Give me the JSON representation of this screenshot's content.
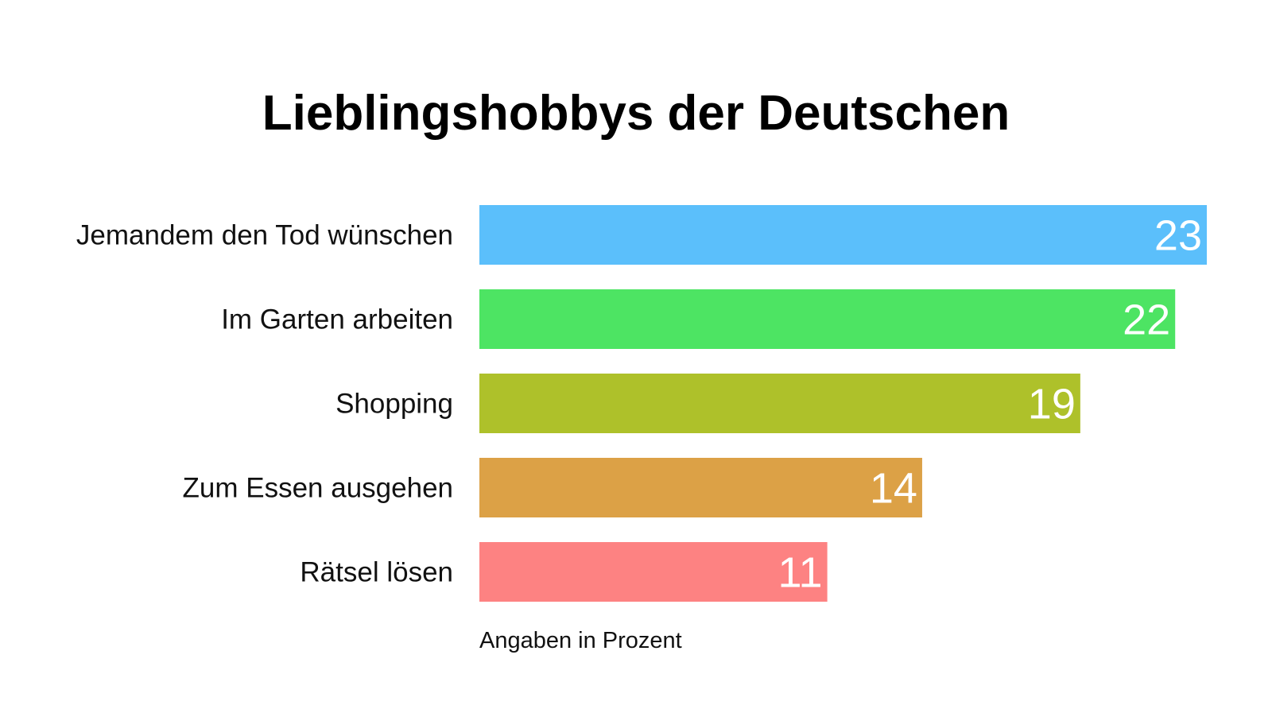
{
  "chart_data": {
    "type": "bar",
    "orientation": "horizontal",
    "title": "Lieblingshobbys der Deutschen",
    "categories": [
      "Jemandem den Tod wünschen",
      "Im Garten arbeiten",
      "Shopping",
      "Zum Essen ausgehen",
      "Rätsel lösen"
    ],
    "values": [
      23,
      22,
      19,
      14,
      11
    ],
    "value_labels": [
      "23",
      "22",
      "19",
      "14",
      "11"
    ],
    "colors": [
      "#5bbffb",
      "#4de463",
      "#aec12a",
      "#dca146",
      "#fd8282"
    ],
    "note": "Angaben in Prozent",
    "xlim": [
      0,
      23
    ],
    "grid": false,
    "legend": "none"
  }
}
